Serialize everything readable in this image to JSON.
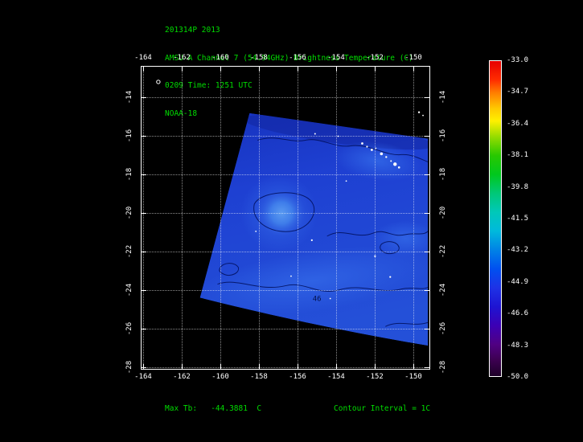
{
  "header": {
    "storm_id": "201314P 2013",
    "product": "AMSU-A Channel 7 (54.94GHz) Brightness Temperature (C)",
    "datetime": "0209 Time: 1251 UTC",
    "satellite": "NOAA-18"
  },
  "plot": {
    "x_ticks": [
      "-164",
      "-162",
      "-160",
      "-158",
      "-156",
      "-154",
      "-152",
      "-150"
    ],
    "y_ticks": [
      "-14",
      "-16",
      "-18",
      "-20",
      "-22",
      "-24",
      "-26",
      "-28"
    ],
    "contour_label": "46"
  },
  "colorbar": {
    "tick_labels": [
      "-33.0",
      "-34.7",
      "-36.4",
      "-38.1",
      "-39.8",
      "-41.5",
      "-43.2",
      "-44.9",
      "-46.6",
      "-48.3",
      "-50.0"
    ]
  },
  "footer": {
    "max_tb": "Max Tb:   -44.3881  C",
    "contour_interval": "Contour Interval = 1C"
  },
  "colors": {
    "background": "#000000",
    "title_text": "#00dc00",
    "axis_text": "#ffffff",
    "swath_base": "#1e40d2",
    "warm_patch": "#4f93ee",
    "contour": "#000f5a"
  },
  "chart_data": {
    "type": "heatmap",
    "title": "AMSU-A Channel 7 (54.94GHz) Brightness Temperature (C)",
    "storm_id": "201314P 2013",
    "time": "0209 Time: 1251 UTC",
    "satellite": "NOAA-18",
    "x_ticks_longitude_deg": [
      -164,
      -162,
      -160,
      -158,
      -156,
      -154,
      -152,
      -150
    ],
    "y_ticks_latitude_deg": [
      -14,
      -16,
      -18,
      -20,
      -22,
      -24,
      -26,
      -28
    ],
    "colorbar_scale_c": [
      -33.0,
      -34.7,
      -36.4,
      -38.1,
      -39.8,
      -41.5,
      -43.2,
      -44.9,
      -46.6,
      -48.3,
      -50.0
    ],
    "value_range_c": [
      -50.0,
      -33.0
    ],
    "max_tb_c": -44.3881,
    "contour_interval_c": 1,
    "visible_contour_label": "46",
    "swath_extent": {
      "lon": [
        -161.5,
        -150.0
      ],
      "lat": [
        -16.4,
        -26.6
      ]
    },
    "swath_values_c": "mostly -44 to -47 (blue); warmer closed-contour patch near lon -157.6, lat -20.3; grid dotted white; islands drawn as white dots near lon -156, lat -19 to -20"
  }
}
